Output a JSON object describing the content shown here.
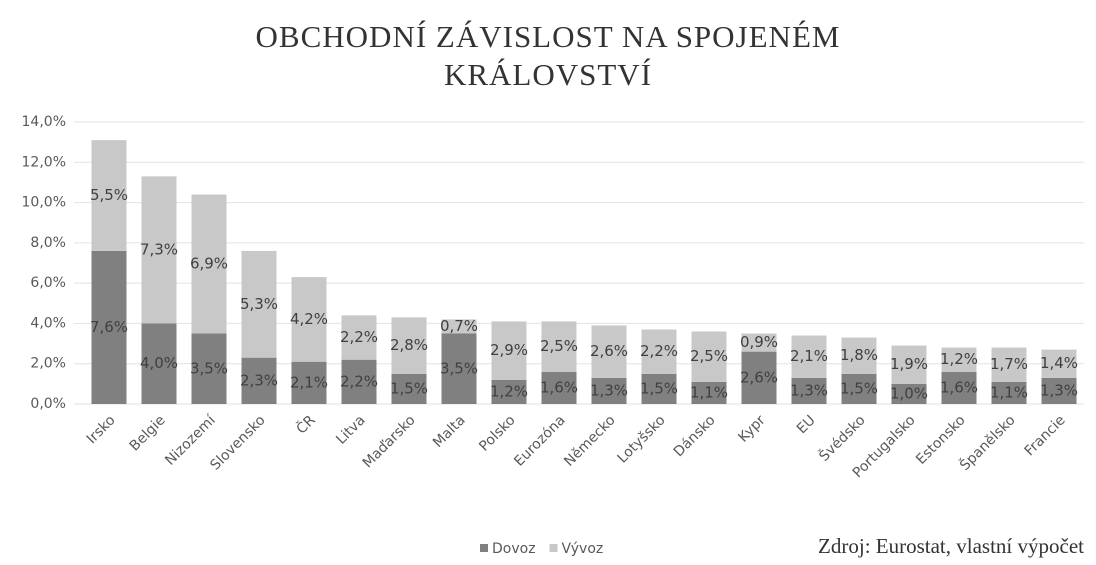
{
  "chart_data": {
    "type": "stacked_bar",
    "title": "OBCHODNÍ ZÁVISLOST NA SPOJENÉM KRÁLOVSTVÍ",
    "categories": [
      "Irsko",
      "Belgie",
      "Nizozemí",
      "Slovensko",
      "ČR",
      "Litva",
      "Maďarsko",
      "Malta",
      "Polsko",
      "Eurozóna",
      "Německo",
      "Lotyšsko",
      "Dánsko",
      "Kypr",
      "EU",
      "Švédsko",
      "Portugalsko",
      "Estonsko",
      "Španělsko",
      "Francie"
    ],
    "series": [
      {
        "name": "Dovoz",
        "color": "#808080",
        "values": [
          7.6,
          4.0,
          3.5,
          2.3,
          2.1,
          2.2,
          1.5,
          3.5,
          1.2,
          1.6,
          1.3,
          1.5,
          1.1,
          2.6,
          1.3,
          1.5,
          1.0,
          1.6,
          1.1,
          1.3
        ],
        "value_labels": [
          "7,6%",
          "4,0%",
          "3,5%",
          "2,3%",
          "2,1%",
          "2,2%",
          "1,5%",
          "3,5%",
          "1,2%",
          "1,6%",
          "1,3%",
          "1,5%",
          "1,1%",
          "2,6%",
          "1,3%",
          "1,5%",
          "1,0%",
          "1,6%",
          "1,1%",
          "1,3%"
        ]
      },
      {
        "name": "Vývoz",
        "color": "#c8c8c8",
        "values": [
          5.5,
          7.3,
          6.9,
          5.3,
          4.2,
          2.2,
          2.8,
          0.7,
          2.9,
          2.5,
          2.6,
          2.2,
          2.5,
          0.9,
          2.1,
          1.8,
          1.9,
          1.2,
          1.7,
          1.4
        ],
        "value_labels": [
          "5,5%",
          "7,3%",
          "6,9%",
          "5,3%",
          "4,2%",
          "2,2%",
          "2,8%",
          "0,7%",
          "2,9%",
          "2,5%",
          "2,6%",
          "2,2%",
          "2,5%",
          "0,9%",
          "2,1%",
          "1,8%",
          "1,9%",
          "1,2%",
          "1,7%",
          "1,4%"
        ]
      }
    ],
    "ylim": [
      0,
      14
    ],
    "yticks": [
      {
        "value": 0,
        "label": "0,0%"
      },
      {
        "value": 2,
        "label": "2,0%"
      },
      {
        "value": 4,
        "label": "4,0%"
      },
      {
        "value": 6,
        "label": "6,0%"
      },
      {
        "value": 8,
        "label": "8,0%"
      },
      {
        "value": 10,
        "label": "10,0%"
      },
      {
        "value": 12,
        "label": "12,0%"
      },
      {
        "value": 14,
        "label": "14,0%"
      }
    ],
    "grid": true,
    "legend": "bottom",
    "source": "Zdroj: Eurostat, vlastní výpočet"
  }
}
